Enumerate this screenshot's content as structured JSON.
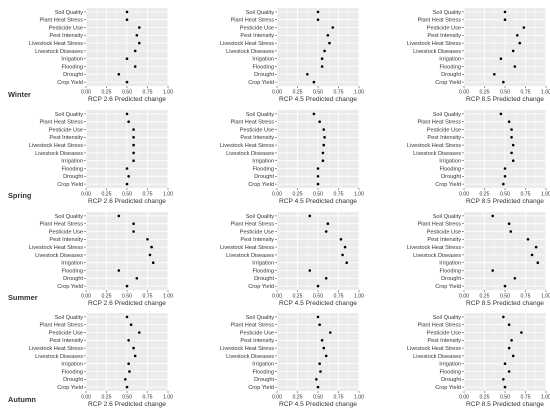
{
  "chart_data": {
    "type": "scatter",
    "categories": [
      "Soil Quality",
      "Plant Heat Stress",
      "Pesticide Use",
      "Pest Intensity",
      "Livestock Heat Stress",
      "Livestock Diseases",
      "Irrigation",
      "Flooding",
      "Drought",
      "Crop Yield"
    ],
    "xlim": [
      0,
      1
    ],
    "xticks": [
      "0.00",
      "0.25",
      "0.50",
      "0.75",
      "1.00"
    ],
    "grid": true,
    "scenarios": [
      "RCP 2.6 Predicted change",
      "RCP 4.5 Predicted change",
      "RCP 8.5 Predicted change"
    ],
    "seasons": [
      {
        "name": "Winter",
        "panels": [
          {
            "xlabel": "RCP 2.6 Predicted change",
            "values": [
              0.5,
              0.5,
              0.65,
              0.62,
              0.65,
              0.6,
              0.5,
              0.6,
              0.4,
              0.5
            ]
          },
          {
            "xlabel": "RCP 4.5 Predicted change",
            "values": [
              0.5,
              0.5,
              0.68,
              0.62,
              0.64,
              0.58,
              0.55,
              0.55,
              0.37,
              0.45
            ]
          },
          {
            "xlabel": "RCP 8.5 Predicted change",
            "values": [
              0.5,
              0.5,
              0.73,
              0.65,
              0.68,
              0.6,
              0.45,
              0.62,
              0.37,
              0.48
            ]
          }
        ]
      },
      {
        "name": "Spring",
        "panels": [
          {
            "xlabel": "RCP 2.6 Predicted change",
            "values": [
              0.5,
              0.52,
              0.58,
              0.58,
              0.58,
              0.58,
              0.58,
              0.5,
              0.52,
              0.5
            ]
          },
          {
            "xlabel": "RCP 4.5 Predicted change",
            "values": [
              0.45,
              0.52,
              0.57,
              0.58,
              0.57,
              0.56,
              0.56,
              0.5,
              0.5,
              0.5
            ]
          },
          {
            "xlabel": "RCP 8.5 Predicted change",
            "values": [
              0.45,
              0.55,
              0.58,
              0.58,
              0.6,
              0.58,
              0.6,
              0.5,
              0.5,
              0.48
            ]
          }
        ]
      },
      {
        "name": "Summer",
        "panels": [
          {
            "xlabel": "RCP 2.6 Predicted change",
            "values": [
              0.4,
              0.58,
              0.58,
              0.75,
              0.8,
              0.78,
              0.82,
              0.4,
              0.62,
              0.5
            ]
          },
          {
            "xlabel": "RCP 4.5 Predicted change",
            "values": [
              0.4,
              0.62,
              0.6,
              0.78,
              0.83,
              0.8,
              0.85,
              0.4,
              0.6,
              0.5
            ]
          },
          {
            "xlabel": "RCP 8.5 Predicted change",
            "values": [
              0.35,
              0.55,
              0.57,
              0.78,
              0.88,
              0.83,
              0.9,
              0.35,
              0.62,
              0.5
            ]
          }
        ]
      },
      {
        "name": "Autumn",
        "panels": [
          {
            "xlabel": "RCP 2.6 Predicted change",
            "values": [
              0.5,
              0.55,
              0.65,
              0.52,
              0.58,
              0.6,
              0.52,
              0.53,
              0.48,
              0.5
            ]
          },
          {
            "xlabel": "RCP 4.5 Predicted change",
            "values": [
              0.5,
              0.52,
              0.65,
              0.55,
              0.57,
              0.6,
              0.52,
              0.53,
              0.48,
              0.5
            ]
          },
          {
            "xlabel": "RCP 8.5 Predicted change",
            "values": [
              0.48,
              0.55,
              0.7,
              0.58,
              0.55,
              0.6,
              0.5,
              0.55,
              0.48,
              0.5
            ]
          }
        ]
      }
    ]
  }
}
